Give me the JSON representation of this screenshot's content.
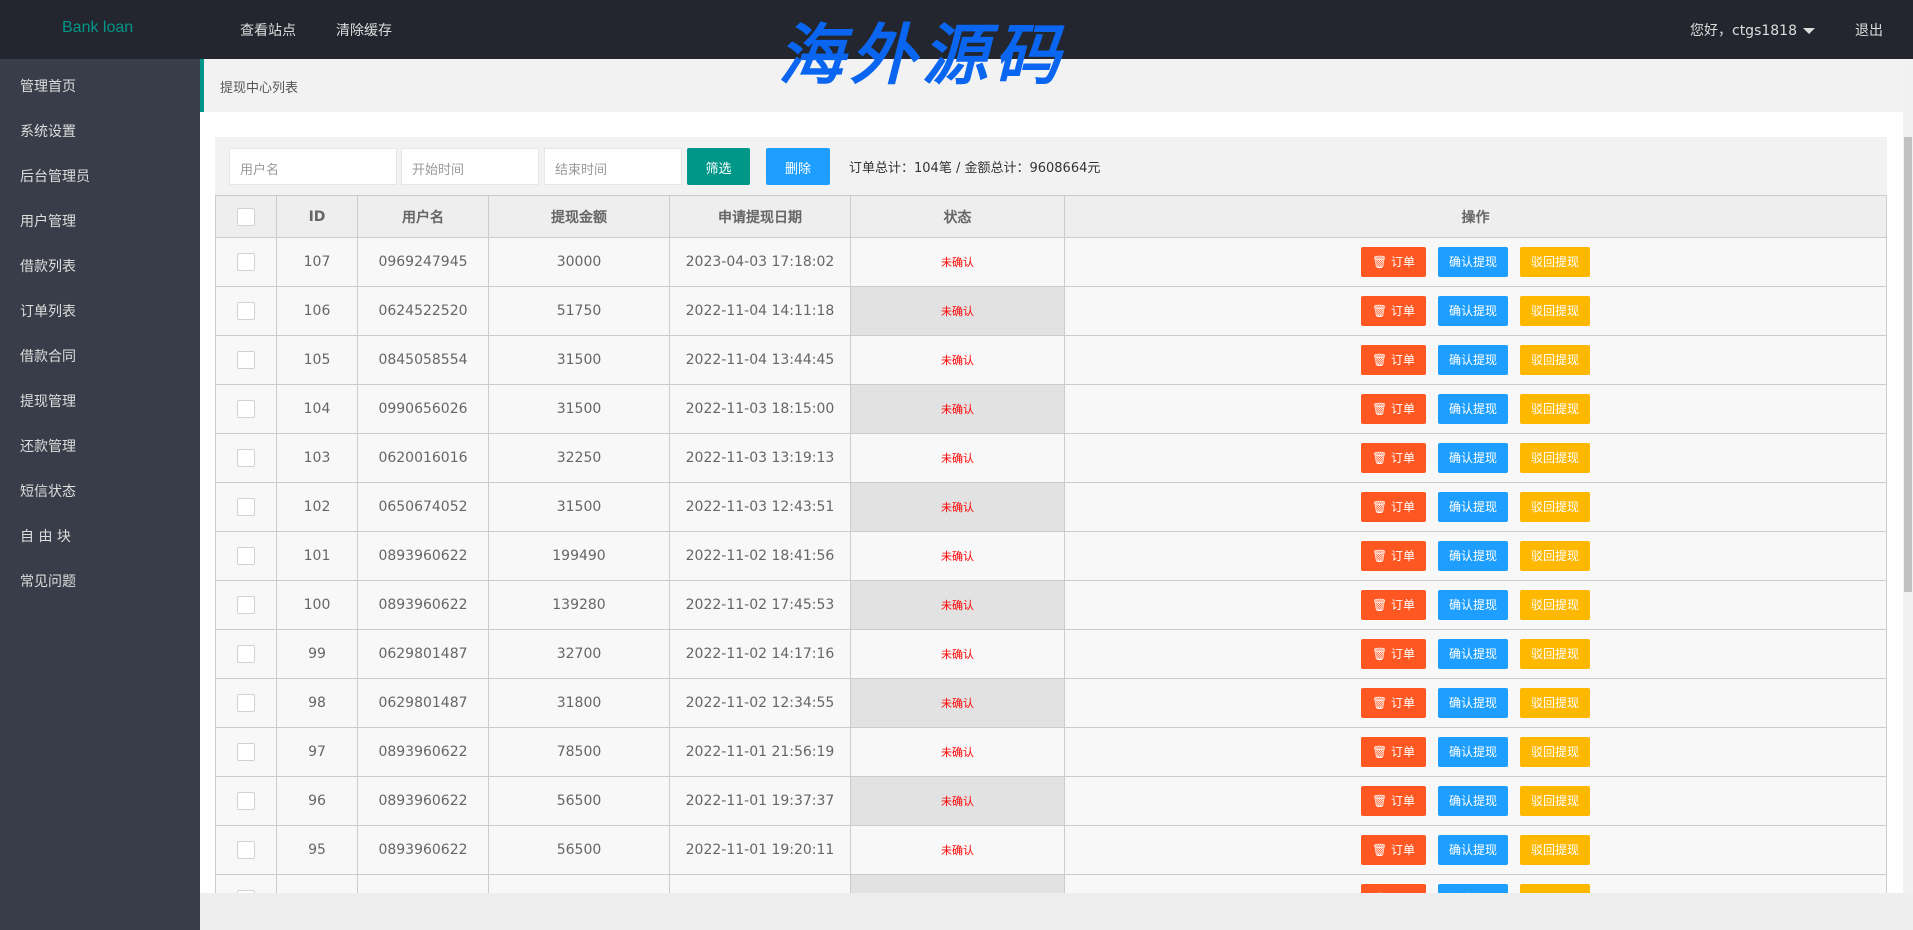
{
  "header": {
    "logo": "Bank loan",
    "nav": [
      "查看站点",
      "清除缓存"
    ],
    "watermark": "海外源码",
    "user": "您好，ctgs1818",
    "logout": "退出"
  },
  "sidebar": {
    "items": [
      "管理首页",
      "系统设置",
      "后台管理员",
      "用户管理",
      "借款列表",
      "订单列表",
      "借款合同",
      "提现管理",
      "还款管理",
      "短信状态",
      "自 由 块",
      "常见问题"
    ]
  },
  "breadcrumb": "提现中心列表",
  "filter": {
    "username_placeholder": "用户名",
    "start_placeholder": "开始时间",
    "end_placeholder": "结束时间",
    "filter_label": "筛选",
    "delete_label": "删除",
    "summary": "订单总计：104笔 / 金额总计：9608664元"
  },
  "colors": {
    "primary": "#009688",
    "danger": "#ff5722",
    "normal": "#1e9fff",
    "warm": "#ffb800"
  },
  "table": {
    "headers": [
      "",
      "ID",
      "用户名",
      "提现金额",
      "申请提现日期",
      "状态",
      "操作"
    ],
    "actions": {
      "order": "订单",
      "confirm": "确认提现",
      "reject": "驳回提现",
      "order_icon": "trash-icon"
    },
    "rows": [
      {
        "id": "107",
        "user": "0969247945",
        "amount": "30000",
        "date": "2023-04-03 17:18:02",
        "status": "未确认"
      },
      {
        "id": "106",
        "user": "0624522520",
        "amount": "51750",
        "date": "2022-11-04 14:11:18",
        "status": "未确认"
      },
      {
        "id": "105",
        "user": "0845058554",
        "amount": "31500",
        "date": "2022-11-04 13:44:45",
        "status": "未确认"
      },
      {
        "id": "104",
        "user": "0990656026",
        "amount": "31500",
        "date": "2022-11-03 18:15:00",
        "status": "未确认"
      },
      {
        "id": "103",
        "user": "0620016016",
        "amount": "32250",
        "date": "2022-11-03 13:19:13",
        "status": "未确认"
      },
      {
        "id": "102",
        "user": "0650674052",
        "amount": "31500",
        "date": "2022-11-03 12:43:51",
        "status": "未确认"
      },
      {
        "id": "101",
        "user": "0893960622",
        "amount": "199490",
        "date": "2022-11-02 18:41:56",
        "status": "未确认"
      },
      {
        "id": "100",
        "user": "0893960622",
        "amount": "139280",
        "date": "2022-11-02 17:45:53",
        "status": "未确认"
      },
      {
        "id": "99",
        "user": "0629801487",
        "amount": "32700",
        "date": "2022-11-02 14:17:16",
        "status": "未确认"
      },
      {
        "id": "98",
        "user": "0629801487",
        "amount": "31800",
        "date": "2022-11-02 12:34:55",
        "status": "未确认"
      },
      {
        "id": "97",
        "user": "0893960622",
        "amount": "78500",
        "date": "2022-11-01 21:56:19",
        "status": "未确认"
      },
      {
        "id": "96",
        "user": "0893960622",
        "amount": "56500",
        "date": "2022-11-01 19:37:37",
        "status": "未确认"
      },
      {
        "id": "95",
        "user": "0893960622",
        "amount": "56500",
        "date": "2022-11-01 19:20:11",
        "status": "未确认"
      },
      {
        "id": "",
        "user": "",
        "amount": "",
        "date": "",
        "status": ""
      }
    ]
  }
}
